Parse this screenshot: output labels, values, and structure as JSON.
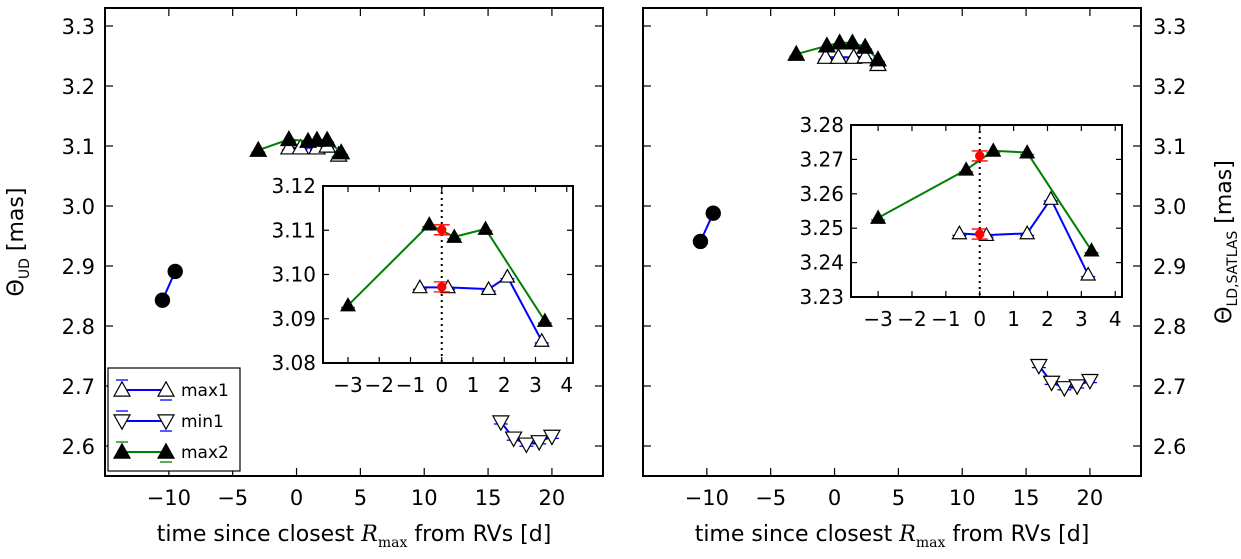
{
  "chart_data": [
    {
      "type": "scatter",
      "xlabel": "time since closest R_max from RVs [d]",
      "xlabel_parts": {
        "pre": "time since closest ",
        "var": "R",
        "sub": "max",
        "post": " from RVs [d]"
      },
      "ylabel": "Θ_UD [mas]",
      "ylabel_parts": {
        "pre": "Θ",
        "sub": "UD",
        "post": " [mas]"
      },
      "ylabel_side": "left",
      "xlim": [
        -15,
        24
      ],
      "ylim": [
        2.55,
        3.33
      ],
      "xticks": [
        -10,
        -5,
        0,
        5,
        10,
        15,
        20
      ],
      "yticks": [
        2.6,
        2.7,
        2.8,
        2.9,
        3.0,
        3.1,
        3.2,
        3.3
      ],
      "grid": false,
      "legend_position": "lower-left",
      "legend": [
        "max1",
        "min1",
        "max2"
      ],
      "series": [
        {
          "marker": "circle",
          "color": "#0000ff",
          "x": [
            -10.5,
            -9.5
          ],
          "y": [
            2.843,
            2.891
          ]
        },
        {
          "name": "max1",
          "marker": "triangle-up-open",
          "color": "#0000ff",
          "x": [
            -0.6,
            0.3,
            1.6,
            2.4,
            3.3
          ],
          "y": [
            3.097,
            3.097,
            3.097,
            3.1,
            3.085
          ]
        },
        {
          "name": "max2",
          "marker": "triangle-up-filled",
          "color": "#008000",
          "x": [
            -3.0,
            -0.6,
            0.9,
            1.6,
            2.4,
            3.5
          ],
          "y": [
            3.093,
            3.111,
            3.108,
            3.11,
            3.11,
            3.089
          ]
        },
        {
          "name": "min1",
          "marker": "triangle-down-open",
          "color": "#0000ff",
          "x": [
            16.0,
            17.0,
            18.0,
            19.0,
            20.0
          ],
          "y": [
            2.64,
            2.613,
            2.603,
            2.607,
            2.616
          ]
        }
      ],
      "inset": {
        "xlim": [
          -3.8,
          4.2
        ],
        "ylim": [
          3.08,
          3.12
        ],
        "xticks": [
          -3,
          -2,
          -1,
          0,
          1,
          2,
          3,
          4
        ],
        "yticks": [
          3.08,
          3.09,
          3.1,
          3.11,
          3.12
        ],
        "vline_x": 0,
        "series": [
          {
            "name": "max1",
            "marker": "triangle-up-open",
            "color": "#0000ff",
            "x": [
              -0.7,
              0.2,
              1.5,
              2.1,
              3.2
            ],
            "y": [
              3.0971,
              3.0971,
              3.0967,
              3.0995,
              3.085
            ]
          },
          {
            "name": "max2",
            "marker": "triangle-up-filled",
            "color": "#008000",
            "x": [
              -3.0,
              -0.4,
              0.4,
              1.4,
              3.3
            ],
            "y": [
              3.093,
              3.1113,
              3.1085,
              3.1103,
              3.0895
            ]
          },
          {
            "marker": "circle-red",
            "color": "#ff0000",
            "x": [
              0.0,
              0.0
            ],
            "y": [
              3.1101,
              3.0972
            ]
          }
        ]
      }
    },
    {
      "type": "scatter",
      "xlabel": "time since closest R_max from RVs [d]",
      "xlabel_parts": {
        "pre": "time since closest ",
        "var": "R",
        "sub": "max",
        "post": " from RVs [d]"
      },
      "ylabel": "Θ_LD,SATLAS [mas]",
      "ylabel_parts": {
        "pre": "Θ",
        "sub": "LD,SATLAS",
        "post": " [mas]"
      },
      "ylabel_side": "right",
      "xlim": [
        -15,
        24
      ],
      "ylim": [
        2.55,
        3.33
      ],
      "xticks": [
        -10,
        -5,
        0,
        5,
        10,
        15,
        20
      ],
      "yticks": [
        2.6,
        2.7,
        2.8,
        2.9,
        3.0,
        3.1,
        3.2,
        3.3
      ],
      "grid": false,
      "series": [
        {
          "marker": "circle",
          "color": "#0000ff",
          "x": [
            -10.5,
            -9.5
          ],
          "y": [
            2.941,
            2.988
          ]
        },
        {
          "name": "max1",
          "marker": "triangle-up-open",
          "color": "#0000ff",
          "x": [
            -0.7,
            0.3,
            1.5,
            2.4,
            3.4
          ],
          "y": [
            3.248,
            3.248,
            3.248,
            3.249,
            3.236
          ]
        },
        {
          "name": "max2",
          "marker": "triangle-up-filled",
          "color": "#008000",
          "x": [
            -3.0,
            -0.6,
            0.4,
            1.4,
            2.4,
            3.4
          ],
          "y": [
            3.253,
            3.267,
            3.272,
            3.272,
            3.265,
            3.244
          ]
        },
        {
          "name": "min1",
          "marker": "triangle-down-open",
          "color": "#0000ff",
          "x": [
            16.0,
            17.0,
            18.0,
            19.0,
            20.0
          ],
          "y": [
            2.734,
            2.706,
            2.697,
            2.7,
            2.709
          ]
        }
      ],
      "inset": {
        "xlim": [
          -3.8,
          4.2
        ],
        "ylim": [
          3.23,
          3.28
        ],
        "xticks": [
          -3,
          -2,
          -1,
          0,
          1,
          2,
          3,
          4
        ],
        "yticks": [
          3.23,
          3.24,
          3.25,
          3.26,
          3.27,
          3.28
        ],
        "vline_x": 0,
        "series": [
          {
            "name": "max1",
            "marker": "triangle-up-open",
            "color": "#0000ff",
            "x": [
              -0.6,
              0.2,
              1.4,
              2.1,
              3.2
            ],
            "y": [
              3.2485,
              3.248,
              3.2485,
              3.2585,
              3.2365
            ]
          },
          {
            "name": "max2",
            "marker": "triangle-up-filled",
            "color": "#008000",
            "x": [
              -3.0,
              -0.4,
              0.4,
              1.4,
              3.3
            ],
            "y": [
              3.253,
              3.267,
              3.2725,
              3.272,
              3.2435
            ]
          },
          {
            "marker": "circle-red",
            "color": "#ff0000",
            "x": [
              0.0,
              0.0
            ],
            "y": [
              3.271,
              3.2483
            ]
          }
        ]
      }
    }
  ]
}
